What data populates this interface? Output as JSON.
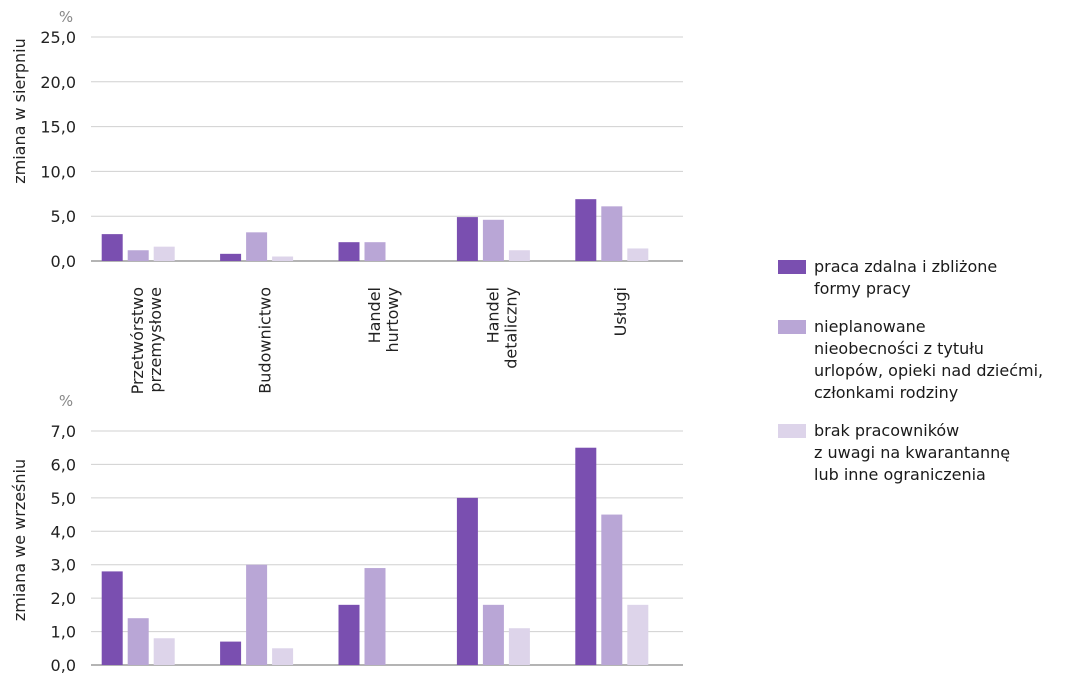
{
  "chart_data": [
    {
      "type": "bar",
      "unit_label": "%",
      "ylabel": "zmiana w sierpniu",
      "ylim": [
        0,
        25
      ],
      "yticks": [
        "0,0",
        "5,0",
        "10,0",
        "15,0",
        "20,0",
        "25,0"
      ],
      "categories": [
        "Przetwórstwo\nprzemysłowe",
        "Budownictwo",
        "Handel\nhurtowy",
        "Handel\ndetaliczny",
        "Usługi"
      ],
      "series": [
        {
          "name": "praca zdalna i zbliżone formy pracy",
          "values": [
            3.0,
            0.8,
            2.1,
            4.9,
            6.9
          ]
        },
        {
          "name": "nieplanowane nieobecności z tytułu urlopów, opieki nad dziećmi, członkami rodziny",
          "values": [
            1.2,
            3.2,
            2.1,
            4.6,
            6.1
          ]
        },
        {
          "name": "brak pracowników z uwagi na kwarantannę lub inne ograniczenia",
          "values": [
            1.6,
            0.5,
            0.0,
            1.2,
            1.4
          ]
        }
      ]
    },
    {
      "type": "bar",
      "unit_label": "%",
      "ylabel": "zmiana we wrześniu",
      "ylim": [
        0,
        7
      ],
      "yticks": [
        "0,0",
        "1,0",
        "2,0",
        "3,0",
        "4,0",
        "5,0",
        "6,0",
        "7,0"
      ],
      "categories": [
        "Przetwórstwo\nprzemysłowe",
        "Budownictwo",
        "Handel\nhurtowy",
        "Handel\ndetaliczny",
        "Usługi"
      ],
      "series": [
        {
          "name": "praca zdalna i zbliżone formy pracy",
          "values": [
            2.8,
            0.7,
            1.8,
            5.0,
            6.5
          ]
        },
        {
          "name": "nieplanowane nieobecności z tytułu urlopów, opieki nad dziećmi, członkami rodziny",
          "values": [
            1.4,
            3.0,
            2.9,
            1.8,
            4.5
          ]
        },
        {
          "name": "brak pracowników z uwagi na kwarantannę lub inne ograniczenia",
          "values": [
            0.8,
            0.5,
            0.0,
            1.1,
            1.8
          ]
        }
      ]
    }
  ],
  "colors": [
    "#7a4fb0",
    "#b9a6d6",
    "#ddd4ea"
  ],
  "legend": {
    "items": [
      {
        "label": "praca zdalna i zbliżone\nformy pracy",
        "color": "#7a4fb0"
      },
      {
        "label": "nieplanowane\nnieobecności z tytułu\nurlopów, opieki nad dziećmi,\nczłonkami rodziny",
        "color": "#b9a6d6"
      },
      {
        "label": "brak pracowników\nz uwagi na kwarantannę\nlub inne ograniczenia",
        "color": "#ddd4ea"
      }
    ]
  }
}
